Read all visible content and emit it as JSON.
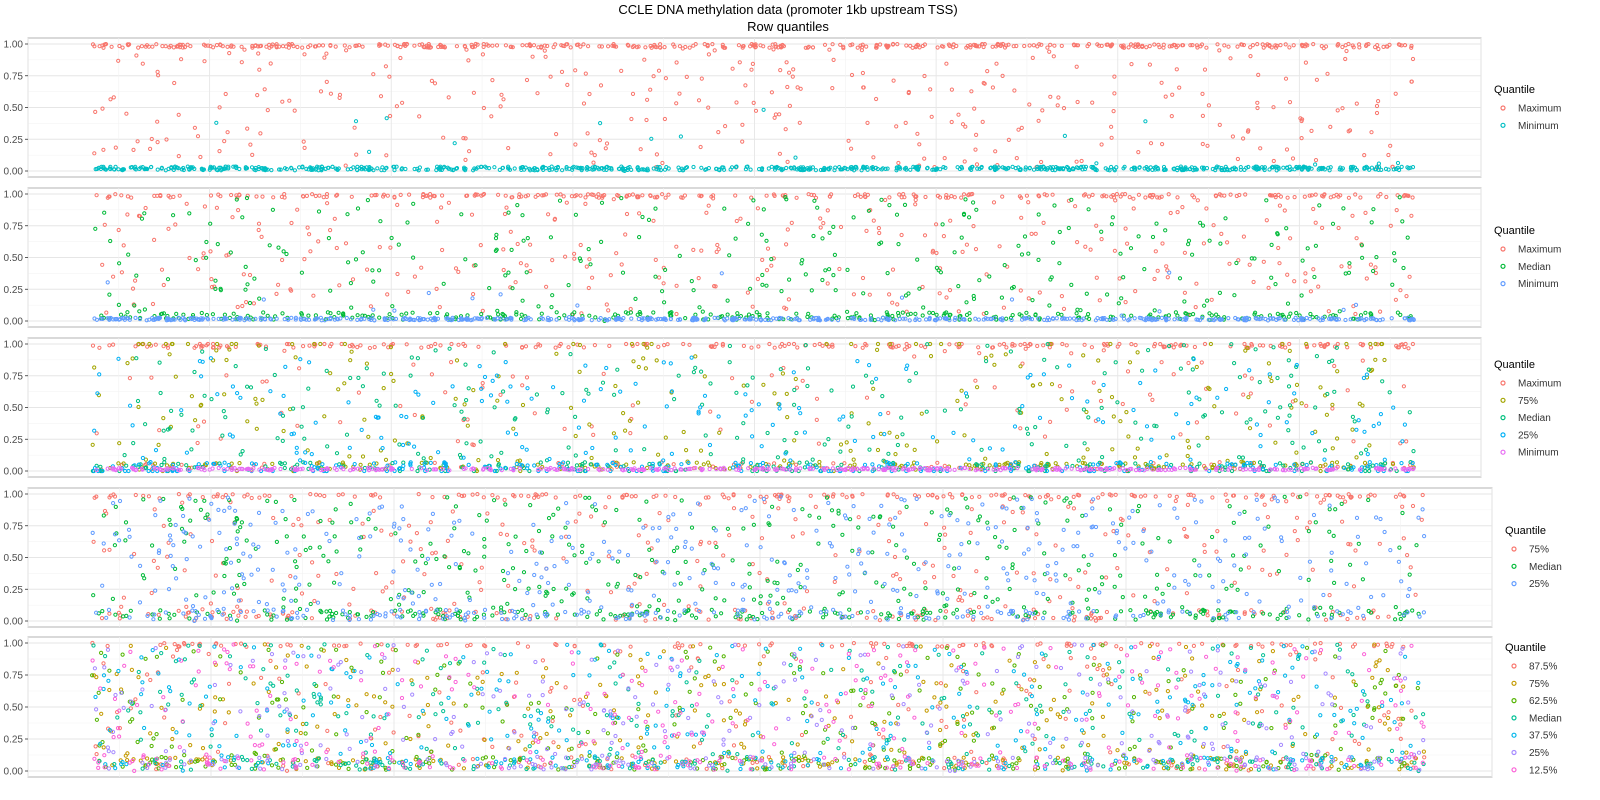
{
  "title": "CCLE DNA methylation data (promoter 1kb upstream TSS)",
  "subtitle": "Row quantiles",
  "chart_data": [
    {
      "type": "scatter",
      "ylim": [
        0,
        1
      ],
      "yticks": [
        "1.00",
        "0.75",
        "0.50",
        "0.25",
        "0.00"
      ],
      "grid": true,
      "legend_placement": "right",
      "legend_title": "Quantile",
      "series": [
        {
          "name": "Maximum",
          "color": "#F8766D"
        },
        {
          "name": "Minimum",
          "color": "#00BFC4"
        }
      ]
    },
    {
      "type": "scatter",
      "ylim": [
        0,
        1
      ],
      "yticks": [
        "1.00",
        "0.75",
        "0.50",
        "0.25",
        "0.00"
      ],
      "grid": true,
      "legend_placement": "right",
      "legend_title": "Quantile",
      "series": [
        {
          "name": "Maximum",
          "color": "#F8766D"
        },
        {
          "name": "Median",
          "color": "#00BA38"
        },
        {
          "name": "Minimum",
          "color": "#619CFF"
        }
      ]
    },
    {
      "type": "scatter",
      "ylim": [
        0,
        1
      ],
      "yticks": [
        "1.00",
        "0.75",
        "0.50",
        "0.25",
        "0.00"
      ],
      "grid": true,
      "legend_placement": "right",
      "legend_title": "Quantile",
      "series": [
        {
          "name": "Maximum",
          "color": "#F8766D"
        },
        {
          "name": "75%",
          "color": "#A3A500"
        },
        {
          "name": "Median",
          "color": "#00BF7D"
        },
        {
          "name": "25%",
          "color": "#00B0F6"
        },
        {
          "name": "Minimum",
          "color": "#E76BF3"
        }
      ]
    },
    {
      "type": "scatter",
      "ylim": [
        0,
        1
      ],
      "yticks": [
        "1.00",
        "0.75",
        "0.50",
        "0.25",
        "0.00"
      ],
      "grid": true,
      "legend_placement": "right",
      "legend_title": "Quantile",
      "series": [
        {
          "name": "75%",
          "color": "#F8766D"
        },
        {
          "name": "Median",
          "color": "#00BA38"
        },
        {
          "name": "25%",
          "color": "#619CFF"
        }
      ]
    },
    {
      "type": "scatter",
      "ylim": [
        0,
        1
      ],
      "yticks": [
        "1.00",
        "0.75",
        "0.50",
        "0.25",
        "0.00"
      ],
      "grid": true,
      "legend_placement": "right",
      "legend_title": "Quantile",
      "series": [
        {
          "name": "87.5%",
          "color": "#F8766D"
        },
        {
          "name": "75%",
          "color": "#C49A00"
        },
        {
          "name": "62.5%",
          "color": "#53B400"
        },
        {
          "name": "Median",
          "color": "#00C094"
        },
        {
          "name": "37.5%",
          "color": "#00B6EB"
        },
        {
          "name": "25%",
          "color": "#A58AFF"
        },
        {
          "name": "12.5%",
          "color": "#FB61D7"
        }
      ]
    }
  ]
}
